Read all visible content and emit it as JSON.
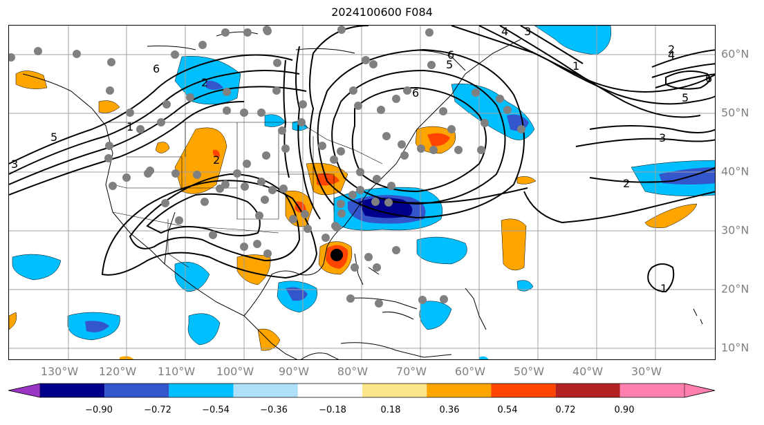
{
  "title": "2024100600 F084",
  "lon_labels": [
    "130°W",
    "120°W",
    "110°W",
    "100°W",
    "90°W",
    "80°W",
    "70°W",
    "60°W",
    "50°W",
    "40°W",
    "30°W"
  ],
  "lat_labels": [
    "60°N",
    "50°N",
    "40°N",
    "30°N",
    "20°N",
    "10°N"
  ],
  "colorbar": {
    "ticks": [
      "−0.90",
      "−0.72",
      "−0.54",
      "−0.36",
      "−0.18",
      "0.18",
      "0.36",
      "0.54",
      "0.72",
      "0.90"
    ],
    "colors": [
      "#9a35c6",
      "#00008b",
      "#3356cc",
      "#00bfff",
      "#aee0fa",
      "#ffffff",
      "#fde68a",
      "#ffa500",
      "#ff4500",
      "#b22222",
      "#ff7fae"
    ]
  },
  "contour_labels": [
    "6",
    "2",
    "1",
    "5",
    "3",
    "2",
    "6",
    "4",
    "3",
    "6",
    "5",
    "1",
    "2",
    "4",
    "6",
    "5",
    "3",
    "2",
    "1"
  ],
  "marker_color": "#808080",
  "center_marker_color": "#000000"
}
